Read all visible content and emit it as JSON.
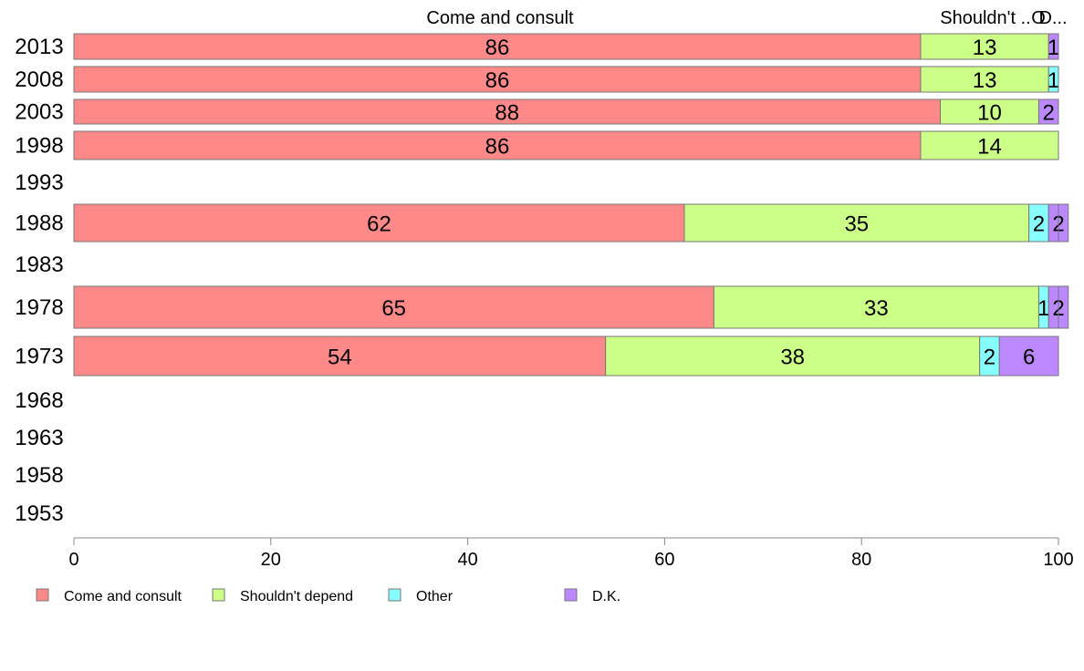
{
  "chart_data": {
    "type": "bar",
    "orientation": "horizontal",
    "stacked": true,
    "categories": [
      "2013",
      "2008",
      "2003",
      "1998",
      "1993",
      "1988",
      "1983",
      "1978",
      "1973",
      "1968",
      "1963",
      "1958",
      "1953"
    ],
    "series": [
      {
        "name": "Come and consult",
        "color": "#ff8888",
        "values": [
          86,
          86,
          88,
          86,
          null,
          62,
          null,
          65,
          54,
          null,
          null,
          null,
          null
        ]
      },
      {
        "name": "Shouldn't depend",
        "color": "#ccff88",
        "values": [
          13,
          13,
          10,
          14,
          null,
          35,
          null,
          33,
          38,
          null,
          null,
          null,
          null
        ]
      },
      {
        "name": "Other",
        "color": "#88ffff",
        "values": [
          0,
          1,
          0,
          0,
          null,
          2,
          null,
          1,
          2,
          null,
          null,
          null,
          null
        ]
      },
      {
        "name": "D.K.",
        "color": "#bb88ff",
        "values": [
          1,
          0,
          2,
          0,
          null,
          2,
          null,
          2,
          6,
          null,
          null,
          null,
          null
        ]
      }
    ],
    "xlim": [
      0,
      100
    ],
    "xticks": [
      "0",
      "20",
      "40",
      "60",
      "80",
      "100"
    ],
    "top_labels": [
      "Come and consult",
      "Shouldn't ..",
      "O",
      "D..."
    ],
    "grid": false,
    "legend_position": "bottom"
  }
}
